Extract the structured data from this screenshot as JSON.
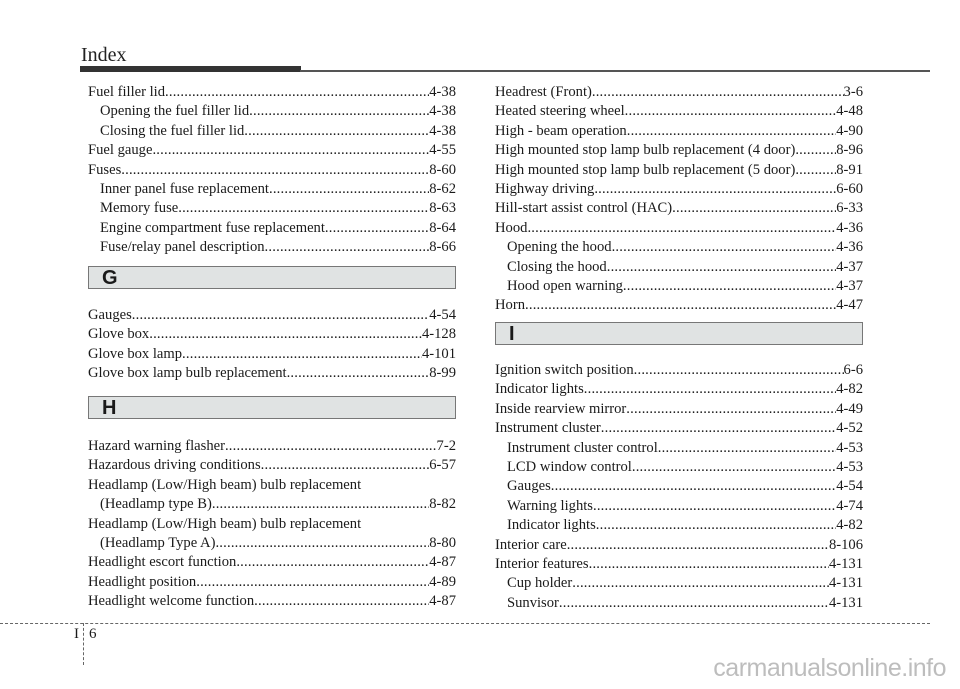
{
  "header": {
    "title": "Index"
  },
  "sections": {
    "G": "G",
    "H": "H",
    "I": "I"
  },
  "left_f": [
    {
      "text": "Fuel filler lid",
      "page": "4-38",
      "indent": false
    },
    {
      "text": "Opening the fuel filler lid",
      "page": "4-38",
      "indent": true
    },
    {
      "text": "Closing the fuel filler lid",
      "page": "4-38",
      "indent": true
    },
    {
      "text": "Fuel gauge",
      "page": "4-55",
      "indent": false
    },
    {
      "text": "Fuses",
      "page": "8-60",
      "indent": false
    },
    {
      "text": "Inner panel fuse replacement",
      "page": "8-62",
      "indent": true
    },
    {
      "text": "Memory fuse",
      "page": "8-63",
      "indent": true
    },
    {
      "text": "Engine compartment fuse replacement",
      "page": "8-64",
      "indent": true
    },
    {
      "text": "Fuse/relay panel description",
      "page": "8-66",
      "indent": true
    }
  ],
  "left_g": [
    {
      "text": "Gauges",
      "page": "4-54",
      "indent": false
    },
    {
      "text": "Glove box",
      "page": "4-128",
      "indent": false
    },
    {
      "text": "Glove box lamp",
      "page": "4-101",
      "indent": false
    },
    {
      "text": "Glove box lamp bulb replacement",
      "page": "8-99",
      "indent": false
    }
  ],
  "left_h": [
    {
      "text": "Hazard warning flasher",
      "page": "7-2",
      "indent": false
    },
    {
      "text": "Hazardous driving conditions",
      "page": "6-57",
      "indent": false
    },
    {
      "text": "Headlamp (Low/High beam) bulb replacement",
      "page": "",
      "indent": false
    },
    {
      "text": "(Headlamp type B)",
      "page": "8-82",
      "indent": true
    },
    {
      "text": "Headlamp (Low/High beam) bulb replacement",
      "page": "",
      "indent": false
    },
    {
      "text": "(Headlamp Type A)",
      "page": "8-80",
      "indent": true
    },
    {
      "text": "Headlight escort function",
      "page": "4-87",
      "indent": false
    },
    {
      "text": "Headlight position",
      "page": "4-89",
      "indent": false
    },
    {
      "text": "Headlight welcome function",
      "page": "4-87",
      "indent": false
    }
  ],
  "right_h": [
    {
      "text": "Headrest (Front)",
      "page": "3-6",
      "indent": false
    },
    {
      "text": "Heated steering wheel",
      "page": "4-48",
      "indent": false
    },
    {
      "text": "High - beam operation",
      "page": "4-90",
      "indent": false
    },
    {
      "text": "High mounted stop lamp bulb replacement (4 door)",
      "page": "8-96",
      "indent": false
    },
    {
      "text": "High mounted stop lamp bulb replacement (5 door)",
      "page": "8-91",
      "indent": false
    },
    {
      "text": "Highway driving",
      "page": "6-60",
      "indent": false
    },
    {
      "text": "Hill-start assist control (HAC)",
      "page": "6-33",
      "indent": false
    },
    {
      "text": "Hood",
      "page": "4-36",
      "indent": false
    },
    {
      "text": "Opening the hood",
      "page": "4-36",
      "indent": true
    },
    {
      "text": "Closing the hood",
      "page": "4-37",
      "indent": true
    },
    {
      "text": "Hood open warning",
      "page": "4-37",
      "indent": true
    },
    {
      "text": "Horn",
      "page": "4-47",
      "indent": false
    }
  ],
  "right_i": [
    {
      "text": "Ignition switch position",
      "page": "6-6",
      "indent": false
    },
    {
      "text": "Indicator lights",
      "page": "4-82",
      "indent": false
    },
    {
      "text": "Inside rearview mirror",
      "page": "4-49",
      "indent": false
    },
    {
      "text": "Instrument cluster",
      "page": "4-52",
      "indent": false
    },
    {
      "text": "Instrument cluster control",
      "page": "4-53",
      "indent": true
    },
    {
      "text": "LCD window control",
      "page": "4-53",
      "indent": true
    },
    {
      "text": "Gauges",
      "page": "4-54",
      "indent": true
    },
    {
      "text": "Warning lights",
      "page": "4-74",
      "indent": true
    },
    {
      "text": "Indicator lights",
      "page": "4-82",
      "indent": true
    },
    {
      "text": "Interior care",
      "page": "8-106",
      "indent": false
    },
    {
      "text": "Interior features",
      "page": "4-131",
      "indent": false
    },
    {
      "text": "Cup holder",
      "page": "4-131",
      "indent": true
    },
    {
      "text": "Sunvisor",
      "page": "4-131",
      "indent": true
    }
  ],
  "footer": {
    "section": "I",
    "page": "6"
  },
  "watermark": "carmanualsonline.info"
}
